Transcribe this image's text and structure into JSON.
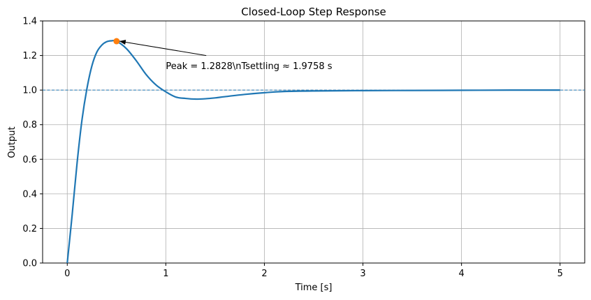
{
  "chart_data": {
    "type": "line",
    "title": "Closed-Loop Step Response",
    "xlabel": "Time [s]",
    "ylabel": "Output",
    "xlim": [
      -0.25,
      5.25
    ],
    "ylim": [
      0,
      1.4
    ],
    "xticks": [
      0,
      1,
      2,
      3,
      4,
      5
    ],
    "xtick_labels": [
      "0",
      "1",
      "2",
      "3",
      "4",
      "5"
    ],
    "yticks": [
      0,
      0.2,
      0.4,
      0.6,
      0.8,
      1.0,
      1.2,
      1.4
    ],
    "ytick_labels": [
      "0.0",
      "0.2",
      "0.4",
      "0.6",
      "0.8",
      "1.0",
      "1.2",
      "1.4"
    ],
    "grid": true,
    "series": [
      {
        "color": "#1f77b4",
        "x": [
          0,
          0.05,
          0.1,
          0.15,
          0.2,
          0.25,
          0.3,
          0.35,
          0.4,
          0.45,
          0.5,
          0.6,
          0.7,
          0.8,
          0.9,
          1.0,
          1.1,
          1.2,
          1.3,
          1.4,
          1.5,
          1.6,
          1.8,
          2.0,
          2.2,
          2.5,
          3.0,
          3.5,
          4.0,
          4.5,
          5.0
        ],
        "y": [
          0.0,
          0.28,
          0.58,
          0.83,
          1.01,
          1.14,
          1.22,
          1.26,
          1.28,
          1.285,
          1.283,
          1.24,
          1.17,
          1.09,
          1.03,
          0.99,
          0.96,
          0.952,
          0.948,
          0.95,
          0.955,
          0.962,
          0.975,
          0.985,
          0.992,
          0.995,
          0.997,
          0.998,
          0.999,
          1.0,
          1.0
        ]
      }
    ],
    "reference_line": {
      "y": 1.0,
      "color": "#1f77b4",
      "style": "dashed"
    },
    "peak_marker": {
      "x": 0.5,
      "y": 1.2828,
      "color": "#ff7f0e"
    },
    "annotation": {
      "text": "Peak = 1.2828\\nTsettling ≈ 1.9758 s",
      "text_x": 1.0,
      "text_y": 1.14,
      "arrow_to_x": 0.5,
      "arrow_to_y": 1.2828
    }
  }
}
